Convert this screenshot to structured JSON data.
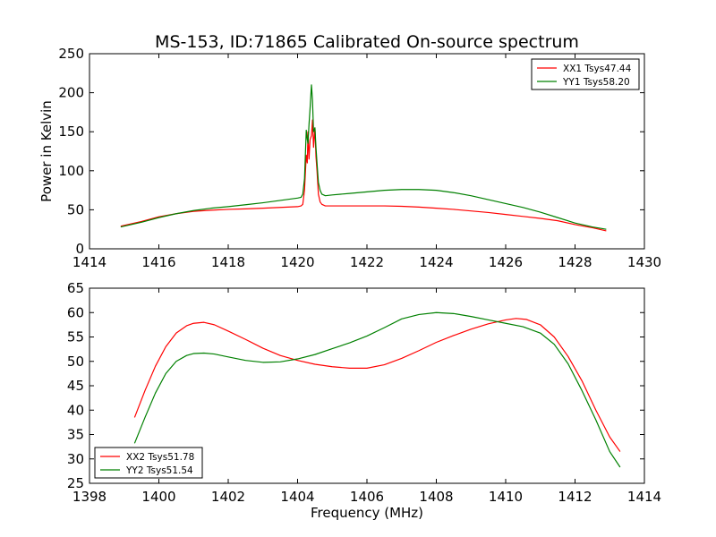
{
  "figure": {
    "title": "MS-153, ID:71865 Calibrated On-source spectrum"
  },
  "chart_data": [
    {
      "type": "line",
      "title": "MS-153, ID:71865 Calibrated On-source spectrum",
      "xlabel": "",
      "ylabel": "Power in Kelvin",
      "xlim": [
        1414,
        1430
      ],
      "ylim": [
        0,
        250
      ],
      "xticks": [
        1414,
        1416,
        1418,
        1420,
        1422,
        1424,
        1426,
        1428,
        1430
      ],
      "yticks": [
        0,
        50,
        100,
        150,
        200,
        250
      ],
      "grid": false,
      "legend_position": "top-right",
      "series": [
        {
          "name": "XX1 Tsys47.44",
          "color": "#ff0000",
          "x": [
            1414.9,
            1415.5,
            1416.0,
            1416.5,
            1417.0,
            1417.5,
            1418.0,
            1418.5,
            1419.0,
            1419.5,
            1420.0,
            1420.1,
            1420.15,
            1420.2,
            1420.25,
            1420.28,
            1420.3,
            1420.33,
            1420.36,
            1420.4,
            1420.43,
            1420.46,
            1420.5,
            1420.53,
            1420.56,
            1420.6,
            1420.65,
            1420.7,
            1420.8,
            1421.0,
            1421.5,
            1422.0,
            1422.5,
            1423.0,
            1423.5,
            1424.0,
            1424.5,
            1425.0,
            1425.5,
            1426.0,
            1426.5,
            1427.0,
            1427.5,
            1428.0,
            1428.5,
            1428.9
          ],
          "y": [
            29,
            35,
            41,
            45,
            48,
            49.5,
            50.5,
            51.2,
            52,
            53,
            54,
            55,
            57,
            75,
            120,
            110,
            150,
            115,
            140,
            145,
            165,
            130,
            155,
            118,
            100,
            70,
            60,
            57,
            55,
            55,
            55,
            55,
            55,
            54.5,
            53.5,
            52,
            50.5,
            48.5,
            46.5,
            44,
            41.5,
            39,
            36,
            31,
            27,
            23
          ]
        },
        {
          "name": "YY1 Tsys58.20",
          "color": "#008000",
          "x": [
            1414.9,
            1415.5,
            1416.0,
            1416.5,
            1417.0,
            1417.5,
            1418.0,
            1418.5,
            1419.0,
            1419.5,
            1420.0,
            1420.1,
            1420.15,
            1420.2,
            1420.25,
            1420.28,
            1420.3,
            1420.33,
            1420.36,
            1420.4,
            1420.43,
            1420.46,
            1420.5,
            1420.53,
            1420.56,
            1420.6,
            1420.65,
            1420.7,
            1420.8,
            1421.0,
            1421.5,
            1422.0,
            1422.5,
            1423.0,
            1423.5,
            1424.0,
            1424.5,
            1425.0,
            1425.5,
            1426.0,
            1426.5,
            1427.0,
            1427.5,
            1428.0,
            1428.5,
            1428.9
          ],
          "y": [
            28,
            34,
            40,
            45,
            49,
            52,
            54,
            56.5,
            59,
            62,
            65,
            66,
            70,
            90,
            152,
            140,
            135,
            160,
            180,
            210,
            190,
            150,
            155,
            130,
            110,
            85,
            75,
            70,
            68,
            69,
            71,
            73,
            75,
            76,
            76,
            75,
            72,
            68,
            63,
            58,
            53,
            47,
            40,
            33,
            28,
            25
          ]
        }
      ]
    },
    {
      "type": "line",
      "title": "",
      "xlabel": "Frequency (MHz)",
      "ylabel": "",
      "xlim": [
        1398,
        1414
      ],
      "ylim": [
        25,
        65
      ],
      "xticks": [
        1398,
        1400,
        1402,
        1404,
        1406,
        1408,
        1410,
        1412,
        1414
      ],
      "yticks": [
        25,
        30,
        35,
        40,
        45,
        50,
        55,
        60,
        65
      ],
      "grid": false,
      "legend_position": "lower-left",
      "series": [
        {
          "name": "XX2 Tsys51.78",
          "color": "#ff0000",
          "x": [
            1399.3,
            1399.6,
            1399.9,
            1400.2,
            1400.5,
            1400.8,
            1401.0,
            1401.3,
            1401.6,
            1402.0,
            1402.5,
            1403.0,
            1403.5,
            1404.0,
            1404.5,
            1405.0,
            1405.5,
            1406.0,
            1406.5,
            1407.0,
            1407.5,
            1408.0,
            1408.5,
            1409.0,
            1409.5,
            1410.0,
            1410.3,
            1410.6,
            1411.0,
            1411.4,
            1411.8,
            1412.2,
            1412.6,
            1413.0,
            1413.3
          ],
          "y": [
            38.5,
            44,
            49,
            53,
            55.8,
            57.3,
            57.8,
            58,
            57.5,
            56.2,
            54.5,
            52.7,
            51.2,
            50.2,
            49.4,
            48.9,
            48.6,
            48.6,
            49.3,
            50.6,
            52.2,
            53.9,
            55.3,
            56.6,
            57.7,
            58.5,
            58.8,
            58.6,
            57.5,
            55,
            51,
            46,
            40,
            34.5,
            31.5
          ]
        },
        {
          "name": "YY2 Tsys51.54",
          "color": "#008000",
          "x": [
            1399.3,
            1399.6,
            1399.9,
            1400.2,
            1400.5,
            1400.8,
            1401.0,
            1401.3,
            1401.6,
            1402.0,
            1402.5,
            1403.0,
            1403.5,
            1404.0,
            1404.5,
            1405.0,
            1405.5,
            1406.0,
            1406.5,
            1407.0,
            1407.5,
            1408.0,
            1408.5,
            1409.0,
            1409.5,
            1410.0,
            1410.5,
            1411.0,
            1411.4,
            1411.8,
            1412.2,
            1412.6,
            1413.0,
            1413.3
          ],
          "y": [
            33.2,
            38.5,
            43.5,
            47.5,
            50,
            51.2,
            51.6,
            51.7,
            51.5,
            50.9,
            50.2,
            49.8,
            49.9,
            50.5,
            51.4,
            52.6,
            53.8,
            55.2,
            56.9,
            58.7,
            59.6,
            60,
            59.8,
            59.2,
            58.5,
            57.8,
            57.1,
            55.8,
            53.5,
            49.5,
            44,
            38,
            31.5,
            28.3
          ]
        }
      ]
    }
  ]
}
